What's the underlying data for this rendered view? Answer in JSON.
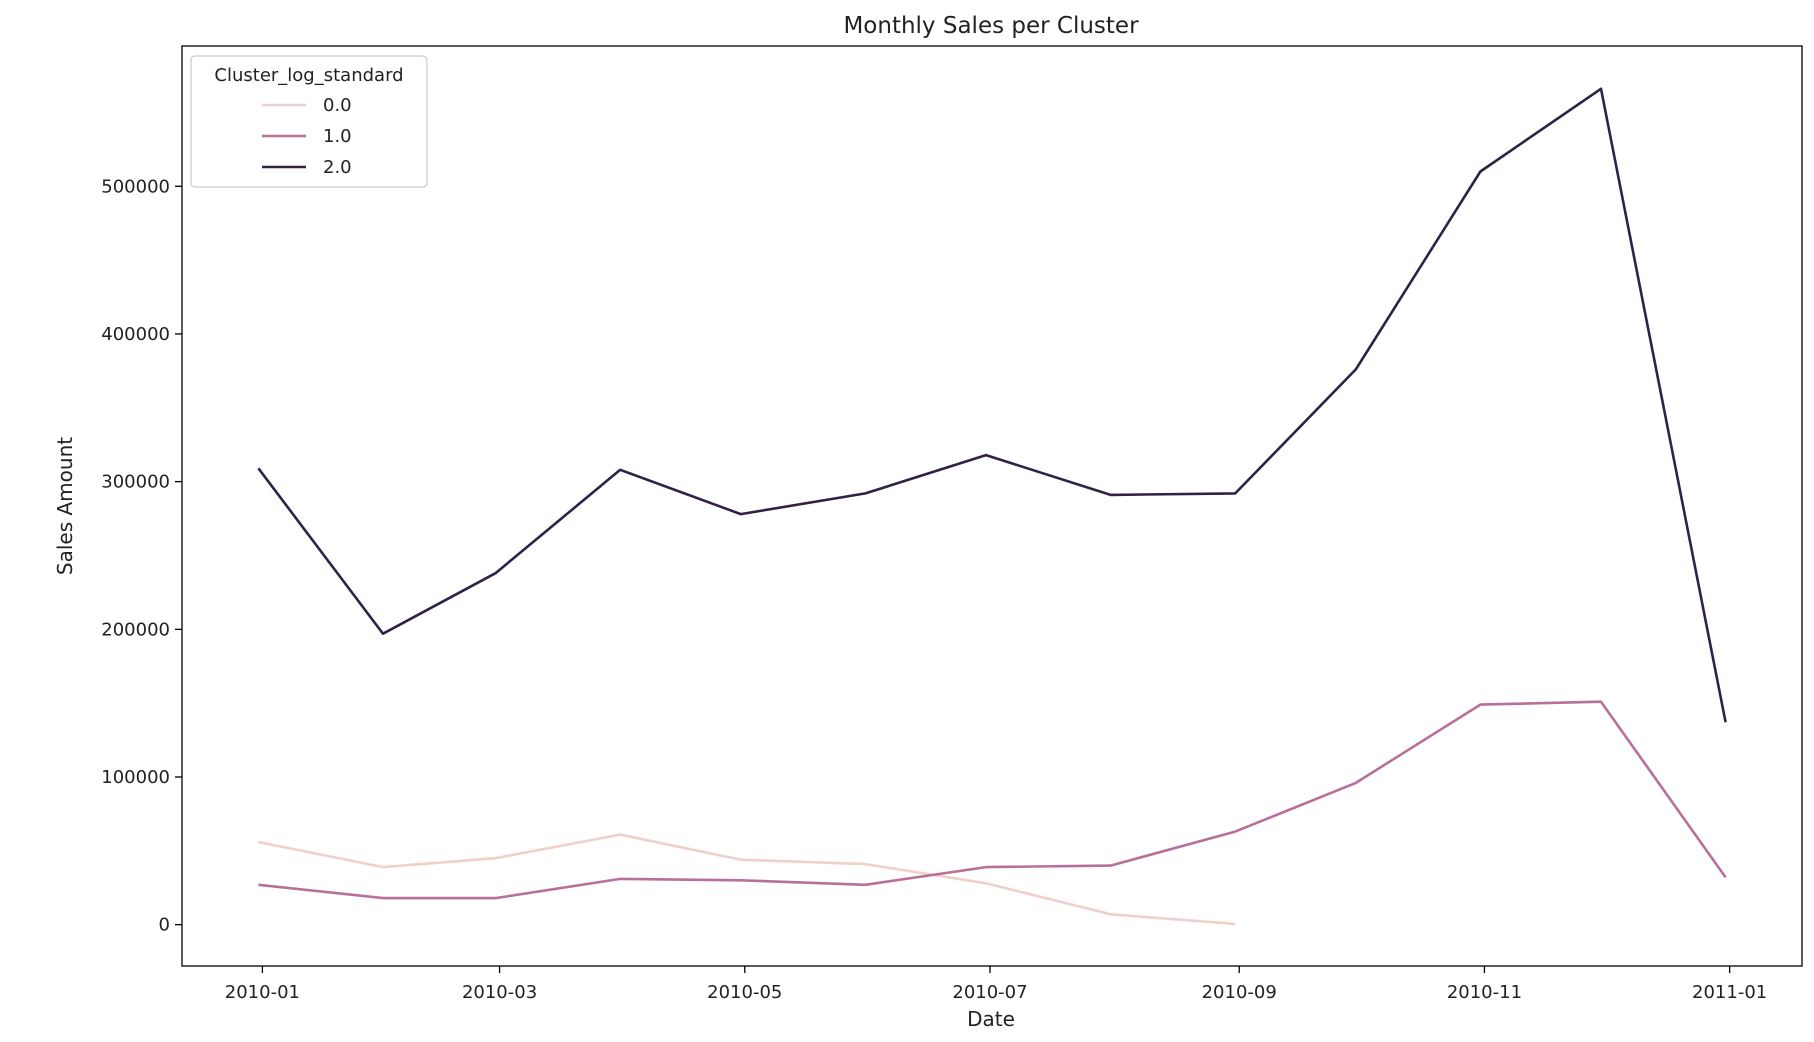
{
  "chart_data": {
    "type": "line",
    "title": "Monthly Sales per Cluster",
    "xlabel": "Date",
    "ylabel": "Sales Amount",
    "x_ticks": [
      "2010-01",
      "2010-03",
      "2010-05",
      "2010-07",
      "2010-09",
      "2010-11",
      "2011-01"
    ],
    "y_ticks": [
      "0",
      "100000",
      "200000",
      "300000",
      "400000",
      "500000"
    ],
    "xlim": [
      "2009-12-12",
      "2011-01-19"
    ],
    "ylim": [
      -28000,
      595000
    ],
    "grid": false,
    "legend": {
      "title": "Cluster_log_standard",
      "position": "top-left"
    },
    "x": [
      "2009-12-31",
      "2010-01-31",
      "2010-02-28",
      "2010-03-31",
      "2010-04-30",
      "2010-05-31",
      "2010-06-30",
      "2010-07-31",
      "2010-08-31",
      "2010-09-30",
      "2010-10-31",
      "2010-11-30",
      "2010-12-31"
    ],
    "series": [
      {
        "name": "0.0",
        "color": "#f0d0cb",
        "values": [
          56000,
          39000,
          45000,
          61000,
          44000,
          41000,
          28000,
          7000,
          500,
          null,
          null,
          null,
          null
        ]
      },
      {
        "name": "1.0",
        "color": "#b8709a",
        "values": [
          27000,
          18000,
          18000,
          31000,
          30000,
          27000,
          39000,
          40000,
          63000,
          96000,
          149000,
          151000,
          32000
        ]
      },
      {
        "name": "2.0",
        "color": "#2f2246",
        "values": [
          309000,
          197000,
          238000,
          308000,
          278000,
          292000,
          318000,
          291000,
          292000,
          376000,
          510000,
          566000,
          137000
        ]
      }
    ]
  }
}
